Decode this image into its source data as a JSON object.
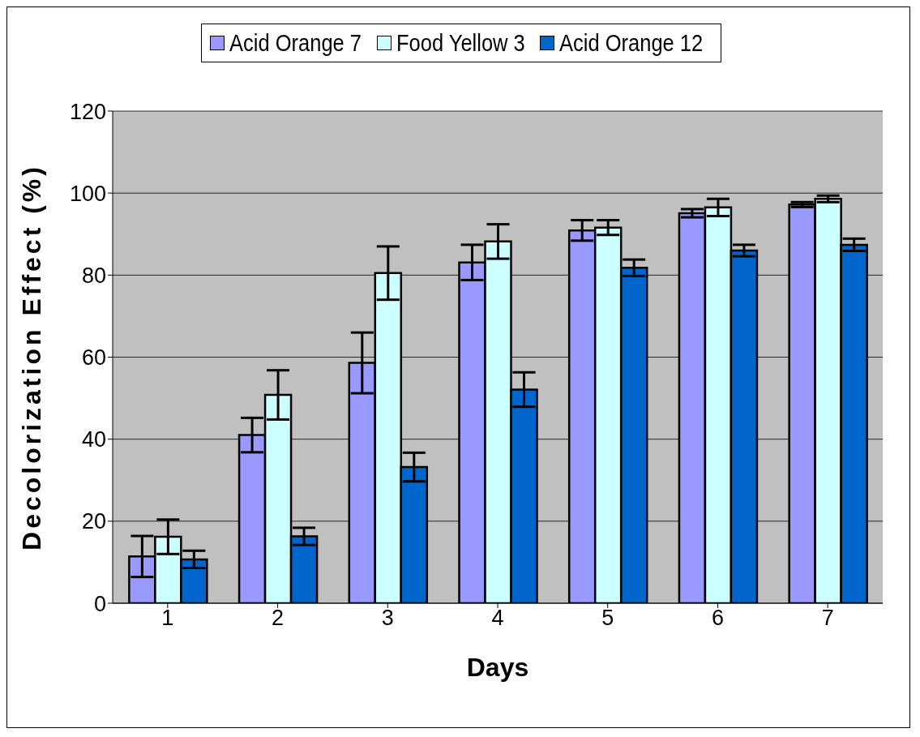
{
  "chart_data": {
    "type": "bar",
    "xlabel": "Days",
    "ylabel": "Decolorization Effect (%)",
    "categories": [
      "1",
      "2",
      "3",
      "4",
      "5",
      "6",
      "7"
    ],
    "series": [
      {
        "name": "Acid Orange 7",
        "color": "#9999ff",
        "values": [
          11.4,
          41,
          58.6,
          83.1,
          90.9,
          95.1,
          97.2
        ],
        "errors": [
          5,
          4.2,
          7.4,
          4.3,
          2.5,
          1,
          0.6
        ]
      },
      {
        "name": "Food Yellow 3",
        "color": "#ccffff",
        "values": [
          16.2,
          50.8,
          80.5,
          88.2,
          91.6,
          96.5,
          98.6
        ],
        "errors": [
          4.2,
          6,
          6.5,
          4.2,
          1.8,
          2.1,
          0.8
        ]
      },
      {
        "name": "Acid Orange 12",
        "color": "#0066cc",
        "values": [
          10.7,
          16.3,
          33.2,
          52.1,
          81.8,
          86,
          87.4
        ],
        "errors": [
          2.1,
          2.1,
          3.5,
          4.2,
          2,
          1.4,
          1.5
        ]
      }
    ],
    "ylim": [
      0,
      120
    ],
    "yticks": [
      0,
      20,
      40,
      60,
      80,
      100,
      120
    ],
    "grid": "y",
    "legend": "top"
  }
}
